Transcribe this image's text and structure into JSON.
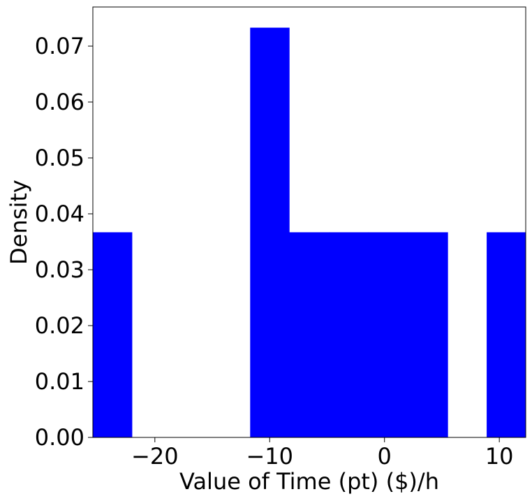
{
  "chart_data": {
    "type": "bar",
    "histogram": true,
    "bins": [
      {
        "x0": -25.4,
        "x1": -22.0,
        "value": 0.0367
      },
      {
        "x0": -22.0,
        "x1": -18.6,
        "value": 0.0
      },
      {
        "x0": -18.6,
        "x1": -15.1,
        "value": 0.0
      },
      {
        "x0": -15.1,
        "x1": -11.7,
        "value": 0.0
      },
      {
        "x0": -11.7,
        "x1": -8.3,
        "value": 0.0733
      },
      {
        "x0": -8.3,
        "x1": -4.8,
        "value": 0.0367
      },
      {
        "x0": -4.8,
        "x1": -1.4,
        "value": 0.0367
      },
      {
        "x0": -1.4,
        "x1": 2.0,
        "value": 0.0367
      },
      {
        "x0": 2.0,
        "x1": 5.5,
        "value": 0.0367
      },
      {
        "x0": 5.5,
        "x1": 8.9,
        "value": 0.0
      },
      {
        "x0": 8.9,
        "x1": 12.3,
        "value": 0.0367
      }
    ],
    "xlabel": "Value of Time (pt) ($)/h",
    "ylabel": "Density",
    "xlim": [
      -25.4,
      12.3
    ],
    "ylim": [
      0,
      0.077
    ],
    "xticks": [
      -20,
      -10,
      0,
      10
    ],
    "xtick_labels": [
      "−20",
      "−10",
      "0",
      "10"
    ],
    "yticks": [
      0.0,
      0.01,
      0.02,
      0.03,
      0.04,
      0.05,
      0.06,
      0.07
    ],
    "ytick_labels": [
      "0.00",
      "0.01",
      "0.02",
      "0.03",
      "0.04",
      "0.05",
      "0.06",
      "0.07"
    ],
    "bar_color": "#0000ff",
    "grid": false,
    "legend": "none"
  }
}
